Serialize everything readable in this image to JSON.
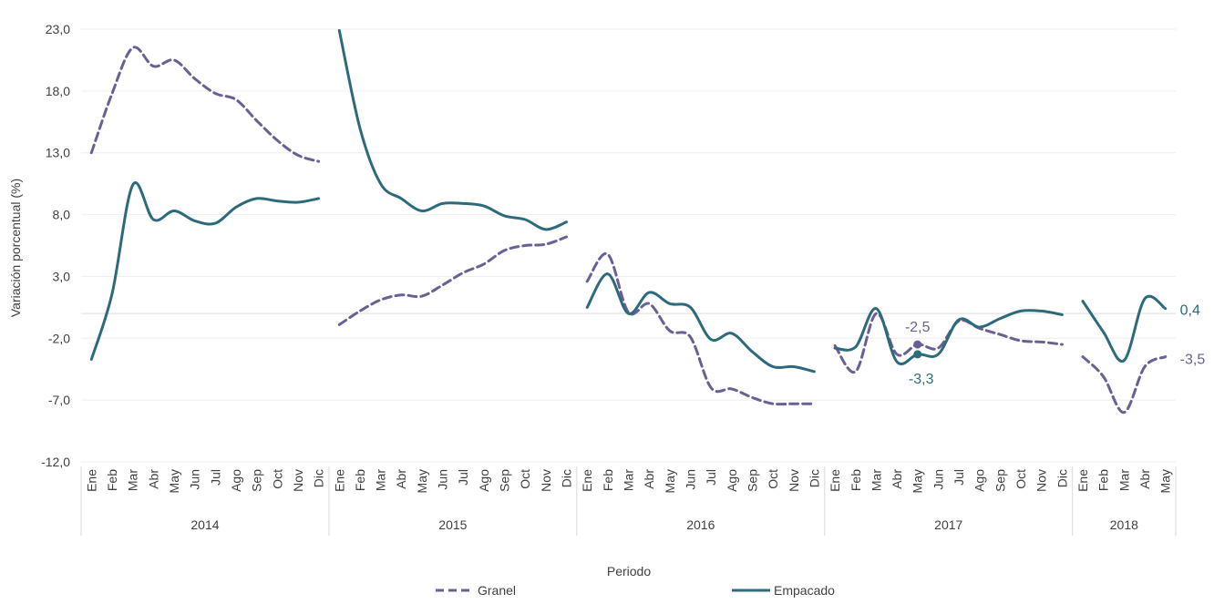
{
  "chart_data": {
    "type": "line",
    "title": "",
    "xlabel": "Periodo",
    "ylabel": "Variación porcentual (%)",
    "ylim": [
      -12.0,
      23.0
    ],
    "yticks": [
      "23,0",
      "18,0",
      "13,0",
      "8,0",
      "3,0",
      "-2,0",
      "-7,0",
      "-12,0"
    ],
    "ytick_values": [
      23,
      18,
      13,
      8,
      3,
      -2,
      -7,
      -12
    ],
    "grid": true,
    "legend_position": "bottom",
    "years": [
      {
        "label": "2014",
        "months": [
          "Ene",
          "Feb",
          "Mar",
          "Abr",
          "May",
          "Jun",
          "Jul",
          "Ago",
          "Sep",
          "Oct",
          "Nov",
          "Dic"
        ]
      },
      {
        "label": "2015",
        "months": [
          "Ene",
          "Feb",
          "Mar",
          "Abr",
          "May",
          "Jun",
          "Jul",
          "Ago",
          "Sep",
          "Oct",
          "Nov",
          "Dic"
        ]
      },
      {
        "label": "2016",
        "months": [
          "Ene",
          "Feb",
          "Mar",
          "Abr",
          "May",
          "Jun",
          "Jul",
          "Ago",
          "Sep",
          "Oct",
          "Nov",
          "Dic"
        ]
      },
      {
        "label": "2017",
        "months": [
          "Ene",
          "Feb",
          "Mar",
          "Abr",
          "May",
          "Jun",
          "Jul",
          "Ago",
          "Sep",
          "Oct",
          "Nov",
          "Dic"
        ]
      },
      {
        "label": "2018",
        "months": [
          "Ene",
          "Feb",
          "Mar",
          "Abr",
          "May"
        ]
      }
    ],
    "series": [
      {
        "name": "Granel",
        "color": "#6b5f93",
        "dash": true,
        "segments": [
          [
            13.0,
            17.8,
            21.5,
            20.0,
            20.5,
            19.0,
            17.8,
            17.3,
            15.6,
            14.0,
            12.8,
            12.3
          ],
          [
            -0.9,
            0.2,
            1.1,
            1.5,
            1.4,
            2.3,
            3.3,
            4.0,
            5.1,
            5.5,
            5.6,
            6.2
          ],
          [
            2.6,
            4.8,
            0.1,
            0.8,
            -1.4,
            -1.9,
            -6.0,
            -6.1,
            -6.8,
            -7.3,
            -7.3,
            -7.3
          ],
          [
            -2.6,
            -4.7,
            0.0,
            -3.3,
            -2.5,
            -2.8,
            -0.6,
            -1.2,
            -1.7,
            -2.2,
            -2.3,
            -2.5
          ],
          [
            -3.5,
            -5.1,
            -8.0,
            -4.3,
            -3.5
          ]
        ]
      },
      {
        "name": "Empacado",
        "color": "#2d6b7c",
        "dash": false,
        "segments": [
          [
            -3.7,
            1.6,
            10.4,
            7.6,
            8.3,
            7.5,
            7.3,
            8.6,
            9.3,
            9.1,
            9.0,
            9.3
          ],
          [
            22.9,
            15.0,
            10.5,
            9.3,
            8.3,
            8.9,
            8.9,
            8.7,
            7.9,
            7.6,
            6.8,
            7.4
          ],
          [
            0.5,
            3.2,
            0.0,
            1.7,
            0.8,
            0.5,
            -2.1,
            -1.6,
            -3.1,
            -4.3,
            -4.3,
            -4.7
          ],
          [
            -2.8,
            -2.7,
            0.4,
            -3.9,
            -3.3,
            -3.3,
            -0.5,
            -1.1,
            -0.4,
            0.2,
            0.2,
            -0.1
          ],
          [
            1.0,
            -1.5,
            -3.8,
            1.2,
            0.4
          ]
        ]
      }
    ],
    "annotations": [
      {
        "text": "-2,5",
        "series": "Granel",
        "year": 3,
        "month": 4
      },
      {
        "text": "-3,3",
        "series": "Empacado",
        "year": 3,
        "month": 4
      },
      {
        "text": "0,4",
        "series": "Empacado",
        "year": 4,
        "month": 4
      },
      {
        "text": "-3,5",
        "series": "Granel",
        "year": 4,
        "month": 4
      }
    ],
    "legend": [
      {
        "name": "Granel"
      },
      {
        "name": "Empacado"
      }
    ]
  }
}
